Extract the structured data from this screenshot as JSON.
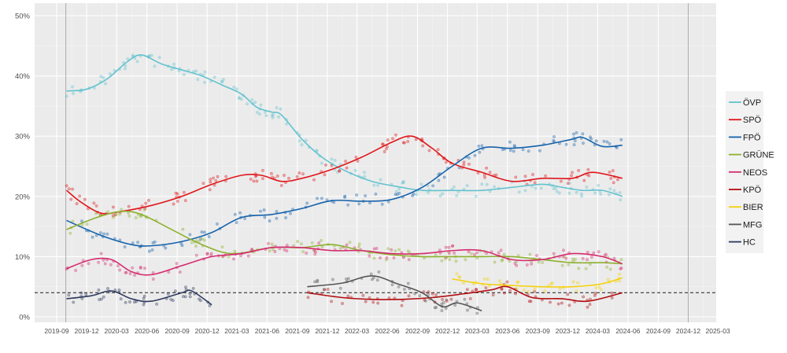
{
  "chart_data": {
    "type": "line",
    "title": "",
    "xlabel": "",
    "ylabel": "",
    "ylim": [
      0,
      50
    ],
    "xlim": [
      "2019-08-01",
      "2025-03-15"
    ],
    "grid": true,
    "legend_position": "right",
    "y_ticks": [
      "0%",
      "10%",
      "20%",
      "30%",
      "40%",
      "50%"
    ],
    "y_tick_values": [
      0,
      10,
      20,
      30,
      40,
      50
    ],
    "x_ticks": [
      "2019-09",
      "2019-12",
      "2020-03",
      "2020-06",
      "2020-09",
      "2020-12",
      "2021-03",
      "2021-06",
      "2021-09",
      "2021-12",
      "2022-03",
      "2022-06",
      "2022-09",
      "2022-12",
      "2023-03",
      "2023-06",
      "2023-09",
      "2023-12",
      "2024-03",
      "2024-06",
      "2024-09",
      "2024-12",
      "2025-03"
    ],
    "vertical_reference_lines": [
      "2019-09-29",
      "2024-12-01"
    ],
    "threshold_line": 4,
    "series": [
      {
        "name": "ÖVP",
        "color": "#63C3CF",
        "points": [
          [
            "2019-10-01",
            37.5
          ],
          [
            "2019-12-01",
            37.8
          ],
          [
            "2020-02-01",
            39.5
          ],
          [
            "2020-04-01",
            42.3
          ],
          [
            "2020-05-15",
            43.5
          ],
          [
            "2020-07-15",
            42
          ],
          [
            "2020-09-15",
            41
          ],
          [
            "2020-11-15",
            40
          ],
          [
            "2021-01-15",
            38.5
          ],
          [
            "2021-03-15",
            37
          ],
          [
            "2021-05-01",
            34.8
          ],
          [
            "2021-06-15",
            34
          ],
          [
            "2021-07-15",
            33.5
          ],
          [
            "2021-09-15",
            29.5
          ],
          [
            "2021-11-15",
            26.5
          ],
          [
            "2022-01-15",
            24.5
          ],
          [
            "2022-04-15",
            22.5
          ],
          [
            "2022-07-15",
            21.5
          ],
          [
            "2022-09-15",
            21
          ],
          [
            "2022-12-15",
            21
          ],
          [
            "2023-03-15",
            21
          ],
          [
            "2023-06-15",
            21.5
          ],
          [
            "2023-09-15",
            22
          ],
          [
            "2023-11-15",
            21.5
          ],
          [
            "2024-01-15",
            21
          ],
          [
            "2024-03-15",
            21
          ],
          [
            "2024-05-15",
            20
          ]
        ]
      },
      {
        "name": "SPÖ",
        "color": "#E0161B",
        "points": [
          [
            "2019-10-01",
            21
          ],
          [
            "2019-11-15",
            19
          ],
          [
            "2020-01-15",
            17.2
          ],
          [
            "2020-03-15",
            17.5
          ],
          [
            "2020-06-15",
            18.5
          ],
          [
            "2020-09-15",
            20
          ],
          [
            "2020-12-15",
            22
          ],
          [
            "2021-03-15",
            23.5
          ],
          [
            "2021-05-15",
            23.5
          ],
          [
            "2021-07-15",
            22.5
          ],
          [
            "2021-09-15",
            23
          ],
          [
            "2021-12-15",
            24.5
          ],
          [
            "2022-03-15",
            26.5
          ],
          [
            "2022-06-15",
            29
          ],
          [
            "2022-08-15",
            30
          ],
          [
            "2022-10-15",
            28
          ],
          [
            "2022-12-15",
            25.5
          ],
          [
            "2023-03-15",
            24
          ],
          [
            "2023-06-15",
            22.5
          ],
          [
            "2023-09-15",
            23
          ],
          [
            "2023-12-15",
            23
          ],
          [
            "2024-02-15",
            24
          ],
          [
            "2024-05-15",
            23
          ]
        ]
      },
      {
        "name": "FPÖ",
        "color": "#1562AB",
        "points": [
          [
            "2019-10-01",
            16
          ],
          [
            "2020-01-15",
            13.5
          ],
          [
            "2020-04-15",
            12
          ],
          [
            "2020-06-15",
            11.8
          ],
          [
            "2020-09-15",
            12.5
          ],
          [
            "2020-12-15",
            14
          ],
          [
            "2021-03-15",
            16.5
          ],
          [
            "2021-06-15",
            17
          ],
          [
            "2021-09-15",
            18
          ],
          [
            "2021-12-15",
            19.3
          ],
          [
            "2022-03-15",
            19.2
          ],
          [
            "2022-06-15",
            19.5
          ],
          [
            "2022-09-15",
            21.5
          ],
          [
            "2022-12-15",
            25
          ],
          [
            "2023-03-15",
            28
          ],
          [
            "2023-06-15",
            28
          ],
          [
            "2023-09-15",
            28.5
          ],
          [
            "2023-12-15",
            29.5
          ],
          [
            "2024-01-15",
            29.8
          ],
          [
            "2024-03-15",
            28.3
          ],
          [
            "2024-05-15",
            28.5
          ]
        ]
      },
      {
        "name": "GRÜNE",
        "color": "#8DB12F",
        "points": [
          [
            "2019-10-01",
            14.5
          ],
          [
            "2020-01-01",
            16.5
          ],
          [
            "2020-03-15",
            17.5
          ],
          [
            "2020-05-15",
            17
          ],
          [
            "2020-08-15",
            14.5
          ],
          [
            "2020-11-15",
            12
          ],
          [
            "2021-02-15",
            10.5
          ],
          [
            "2021-06-15",
            11.5
          ],
          [
            "2021-09-15",
            11.5
          ],
          [
            "2021-12-15",
            12
          ],
          [
            "2022-03-15",
            11
          ],
          [
            "2022-06-15",
            10.3
          ],
          [
            "2022-09-15",
            10
          ],
          [
            "2022-12-15",
            10
          ],
          [
            "2023-03-15",
            10
          ],
          [
            "2023-06-15",
            10
          ],
          [
            "2023-09-15",
            9.5
          ],
          [
            "2023-12-15",
            9
          ],
          [
            "2024-03-15",
            9
          ],
          [
            "2024-05-15",
            8.8
          ]
        ]
      },
      {
        "name": "NEOS",
        "color": "#D52B6E",
        "points": [
          [
            "2019-10-01",
            8
          ],
          [
            "2019-12-15",
            9.5
          ],
          [
            "2020-02-15",
            9.5
          ],
          [
            "2020-04-15",
            7.5
          ],
          [
            "2020-06-15",
            7
          ],
          [
            "2020-09-15",
            8.5
          ],
          [
            "2020-12-15",
            10
          ],
          [
            "2021-03-15",
            10.5
          ],
          [
            "2021-06-15",
            11.5
          ],
          [
            "2021-09-15",
            11.5
          ],
          [
            "2021-12-15",
            11
          ],
          [
            "2022-03-15",
            11
          ],
          [
            "2022-06-15",
            10.5
          ],
          [
            "2022-09-15",
            10.5
          ],
          [
            "2022-12-15",
            11
          ],
          [
            "2023-03-15",
            11
          ],
          [
            "2023-06-15",
            9.5
          ],
          [
            "2023-09-15",
            9.5
          ],
          [
            "2023-12-15",
            10.5
          ],
          [
            "2024-03-15",
            10
          ],
          [
            "2024-05-15",
            8.8
          ]
        ]
      },
      {
        "name": "KPÖ",
        "color": "#B10D10",
        "points": [
          [
            "2021-10-01",
            4
          ],
          [
            "2022-01-15",
            3.2
          ],
          [
            "2022-04-15",
            2.9
          ],
          [
            "2022-07-15",
            2.9
          ],
          [
            "2022-10-15",
            3.2
          ],
          [
            "2023-01-15",
            3.8
          ],
          [
            "2023-04-15",
            4.5
          ],
          [
            "2023-06-01",
            5
          ],
          [
            "2023-08-15",
            3.2
          ],
          [
            "2023-11-15",
            3
          ],
          [
            "2024-02-01",
            2.6
          ],
          [
            "2024-05-15",
            4
          ]
        ]
      },
      {
        "name": "BIER",
        "color": "#F4D10A",
        "points": [
          [
            "2022-12-15",
            6.3
          ],
          [
            "2023-03-15",
            5.5
          ],
          [
            "2023-06-15",
            5.2
          ],
          [
            "2023-09-15",
            5
          ],
          [
            "2023-12-15",
            5
          ],
          [
            "2024-03-15",
            5.5
          ],
          [
            "2024-05-15",
            6.5
          ]
        ]
      },
      {
        "name": "MFG",
        "color": "#555555",
        "points": [
          [
            "2021-10-01",
            5
          ],
          [
            "2022-01-15",
            5.6
          ],
          [
            "2022-04-15",
            6.8
          ],
          [
            "2022-07-01",
            5.5
          ],
          [
            "2022-09-15",
            4
          ],
          [
            "2022-11-15",
            1.7
          ],
          [
            "2023-01-01",
            2.3
          ],
          [
            "2023-03-15",
            1
          ]
        ]
      },
      {
        "name": "HC",
        "color": "#2E3A5E",
        "points": [
          [
            "2019-10-01",
            3
          ],
          [
            "2019-12-15",
            3.5
          ],
          [
            "2020-02-15",
            4.3
          ],
          [
            "2020-04-15",
            3
          ],
          [
            "2020-06-15",
            2.6
          ],
          [
            "2020-09-15",
            4
          ],
          [
            "2020-10-15",
            4.3
          ],
          [
            "2020-12-15",
            2
          ]
        ]
      }
    ]
  }
}
